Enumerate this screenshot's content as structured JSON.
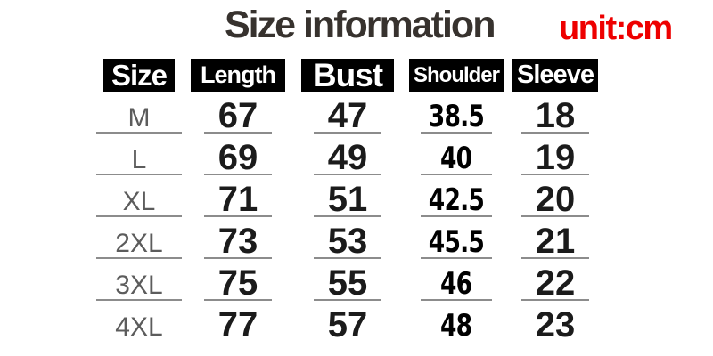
{
  "page": {
    "title": "Size information",
    "unit_label": "unit:cm"
  },
  "table": {
    "columns": [
      {
        "key": "size",
        "label": "Size"
      },
      {
        "key": "length",
        "label": "Length"
      },
      {
        "key": "bust",
        "label": "Bust"
      },
      {
        "key": "shoulder",
        "label": "Shoulder"
      },
      {
        "key": "sleeve",
        "label": "Sleeve"
      }
    ],
    "rows": [
      {
        "size": "M",
        "length": "67",
        "bust": "47",
        "shoulder": "38.5",
        "sleeve": "18"
      },
      {
        "size": "L",
        "length": "69",
        "bust": "49",
        "shoulder": "40",
        "sleeve": "19"
      },
      {
        "size": "XL",
        "length": "71",
        "bust": "51",
        "shoulder": "42.5",
        "sleeve": "20"
      },
      {
        "size": "2XL",
        "length": "73",
        "bust": "53",
        "shoulder": "45.5",
        "sleeve": "21"
      },
      {
        "size": "3XL",
        "length": "75",
        "bust": "55",
        "shoulder": "46",
        "sleeve": "22"
      },
      {
        "size": "4XL",
        "length": "77",
        "bust": "57",
        "shoulder": "48",
        "sleeve": "23"
      }
    ]
  },
  "chart_data": {
    "type": "table",
    "title": "Size information",
    "unit": "cm",
    "columns": [
      "Size",
      "Length",
      "Bust",
      "Shoulder",
      "Sleeve"
    ],
    "rows": [
      [
        "M",
        67,
        47,
        38.5,
        18
      ],
      [
        "L",
        69,
        49,
        40,
        19
      ],
      [
        "XL",
        71,
        51,
        42.5,
        20
      ],
      [
        "2XL",
        73,
        53,
        45.5,
        21
      ],
      [
        "3XL",
        75,
        55,
        46,
        22
      ],
      [
        "4XL",
        77,
        57,
        48,
        23
      ]
    ]
  },
  "colors": {
    "background": "#ffffff",
    "title_text": "#37322e",
    "unit_text": "#ee0000",
    "header_bg": "#000000",
    "header_text": "#ffffff",
    "value_text": "#1b1b1b",
    "shoulder_text": "#000000",
    "size_label_text": "#5c5c5c",
    "row_line": "#8c8c8c"
  }
}
